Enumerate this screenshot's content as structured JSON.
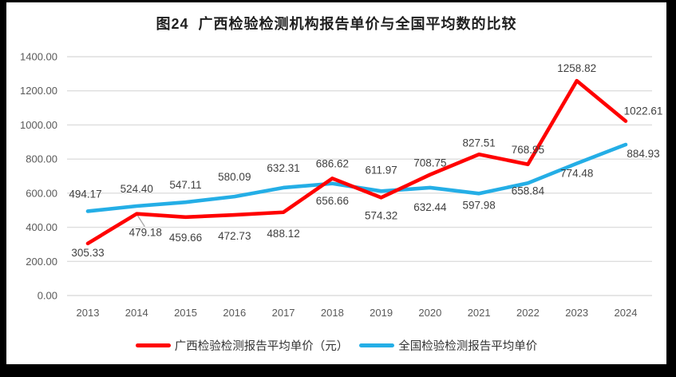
{
  "chart_data": {
    "type": "line",
    "title": "图24  广西检验检测机构报告单价与全国平均数的比较",
    "categories": [
      "2013",
      "2014",
      "2015",
      "2016",
      "2017",
      "2018",
      "2019",
      "2020",
      "2021",
      "2022",
      "2023",
      "2024"
    ],
    "series": [
      {
        "name": "广西检验检测报告平均单价（元）",
        "color": "#FF0000",
        "values": [
          305.33,
          479.18,
          459.66,
          472.73,
          488.12,
          686.62,
          574.32,
          708.75,
          827.51,
          768.95,
          1258.82,
          1022.61
        ],
        "label_side": [
          "below",
          "below",
          "below",
          "below",
          "below",
          "above",
          "below",
          "above",
          "above",
          "above",
          "above",
          "above"
        ]
      },
      {
        "name": "全国检验检测报告平均单价",
        "color": "#24AEE6",
        "values": [
          494.17,
          524.4,
          547.11,
          580.09,
          632.31,
          656.66,
          611.97,
          632.44,
          597.98,
          658.84,
          774.48,
          884.93
        ],
        "label_side": [
          "above",
          "above",
          "above",
          "above",
          "above",
          "below",
          "above",
          "below",
          "below",
          "below",
          "below",
          "below"
        ]
      }
    ],
    "ylim": [
      0,
      1400
    ],
    "yticks": [
      "0.00",
      "200.00",
      "400.00",
      "600.00",
      "800.00",
      "1000.00",
      "1200.00",
      "1400.00"
    ],
    "grid": "horizontal-only",
    "legend_position": "bottom",
    "data_labels": true,
    "colors": {
      "gridline": "#DEDEDE",
      "axis_text": "#595959",
      "data_label_text": "#404040",
      "title_text": "#1F1F1F",
      "legend_text": "#333333",
      "leader_line": "#A6A6A6",
      "frame": "#000000",
      "canvas": "#FFFFFF"
    }
  }
}
